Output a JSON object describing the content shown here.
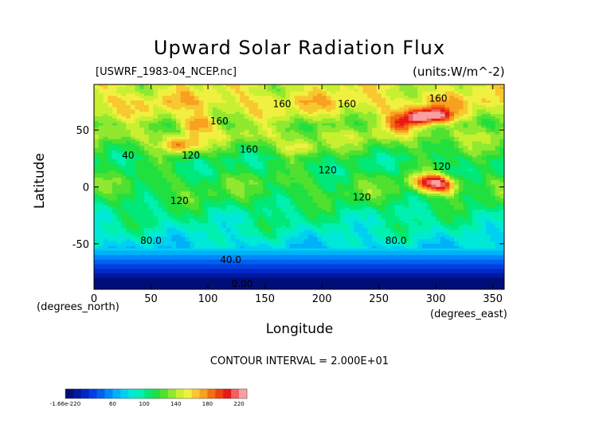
{
  "chart_data": {
    "type": "heatmap",
    "title": "Upward Solar Radiation Flux",
    "subtitle_left": "[USWRF_1983-04_NCEP.nc]",
    "subtitle_right": "(units:W/m^-2)",
    "xlabel": "Longitude",
    "ylabel": "Latitude",
    "x_unit_note": "(degrees_east)",
    "y_unit_note": "(degrees_north)",
    "xlim": [
      0,
      360
    ],
    "ylim": [
      -90,
      90
    ],
    "x_ticks": [
      "0",
      "50",
      "100",
      "150",
      "200",
      "250",
      "300",
      "350"
    ],
    "y_ticks": [
      "50",
      "0",
      "-50"
    ],
    "contour_interval_text": "CONTOUR INTERVAL = 2.000E+01",
    "latitude_profile": [
      {
        "lat": 85,
        "value": 150
      },
      {
        "lat": 75,
        "value": 160
      },
      {
        "lat": 65,
        "value": 150
      },
      {
        "lat": 55,
        "value": 130
      },
      {
        "lat": 45,
        "value": 140
      },
      {
        "lat": 35,
        "value": 125
      },
      {
        "lat": 25,
        "value": 110
      },
      {
        "lat": 15,
        "value": 110
      },
      {
        "lat": 5,
        "value": 120
      },
      {
        "lat": -5,
        "value": 120
      },
      {
        "lat": -15,
        "value": 110
      },
      {
        "lat": -25,
        "value": 100
      },
      {
        "lat": -35,
        "value": 95
      },
      {
        "lat": -45,
        "value": 85
      },
      {
        "lat": -52,
        "value": 78
      },
      {
        "lat": -58,
        "value": 65
      },
      {
        "lat": -64,
        "value": 50
      },
      {
        "lat": -70,
        "value": 35
      },
      {
        "lat": -78,
        "value": 15
      },
      {
        "lat": -86,
        "value": 0
      }
    ],
    "hotspots": [
      {
        "lon": 285,
        "lat": 62,
        "value": 200
      },
      {
        "lon": 300,
        "lat": 62,
        "value": 205
      },
      {
        "lon": 295,
        "lat": 5,
        "value": 190
      },
      {
        "lon": 305,
        "lat": 0,
        "value": 180
      },
      {
        "lon": 90,
        "lat": 55,
        "value": 180
      },
      {
        "lon": 75,
        "lat": 37,
        "value": 185
      },
      {
        "lon": 180,
        "lat": 35,
        "value": 160
      },
      {
        "lon": 270,
        "lat": 55,
        "value": 175
      }
    ],
    "contour_labels": [
      {
        "text": "160",
        "lon": 165,
        "lat": 70
      },
      {
        "text": "160",
        "lon": 222,
        "lat": 70
      },
      {
        "text": "160",
        "lon": 302,
        "lat": 75
      },
      {
        "text": "160",
        "lon": 110,
        "lat": 55
      },
      {
        "text": "160",
        "lon": 136,
        "lat": 30
      },
      {
        "text": "120",
        "lon": 85,
        "lat": 25
      },
      {
        "text": "120",
        "lon": 205,
        "lat": 12
      },
      {
        "text": "120",
        "lon": 305,
        "lat": 15
      },
      {
        "text": "120",
        "lon": 75,
        "lat": -15
      },
      {
        "text": "120",
        "lon": 235,
        "lat": -12
      },
      {
        "text": "40",
        "lon": 30,
        "lat": 25
      },
      {
        "text": "80.0",
        "lon": 50,
        "lat": -50
      },
      {
        "text": "80.0",
        "lon": 265,
        "lat": -50
      },
      {
        "text": "40.0",
        "lon": 120,
        "lat": -67
      },
      {
        "text": "0.00",
        "lon": 130,
        "lat": -88
      }
    ],
    "colorbar": {
      "min_label": "-1.66e-220",
      "labels": [
        "60",
        "100",
        "140",
        "180",
        "220"
      ],
      "colors": [
        "#000e7a",
        "#0018a0",
        "#0028c8",
        "#0040e0",
        "#0060f0",
        "#0088f8",
        "#00b0f8",
        "#00d0f0",
        "#00e8d8",
        "#00f0b0",
        "#00e878",
        "#20e040",
        "#50e030",
        "#90e830",
        "#c8f030",
        "#f0f040",
        "#f8c830",
        "#f8a020",
        "#f07010",
        "#f04010",
        "#e81818",
        "#f06060",
        "#f8a0a0"
      ],
      "min": 0,
      "max": 230
    }
  }
}
